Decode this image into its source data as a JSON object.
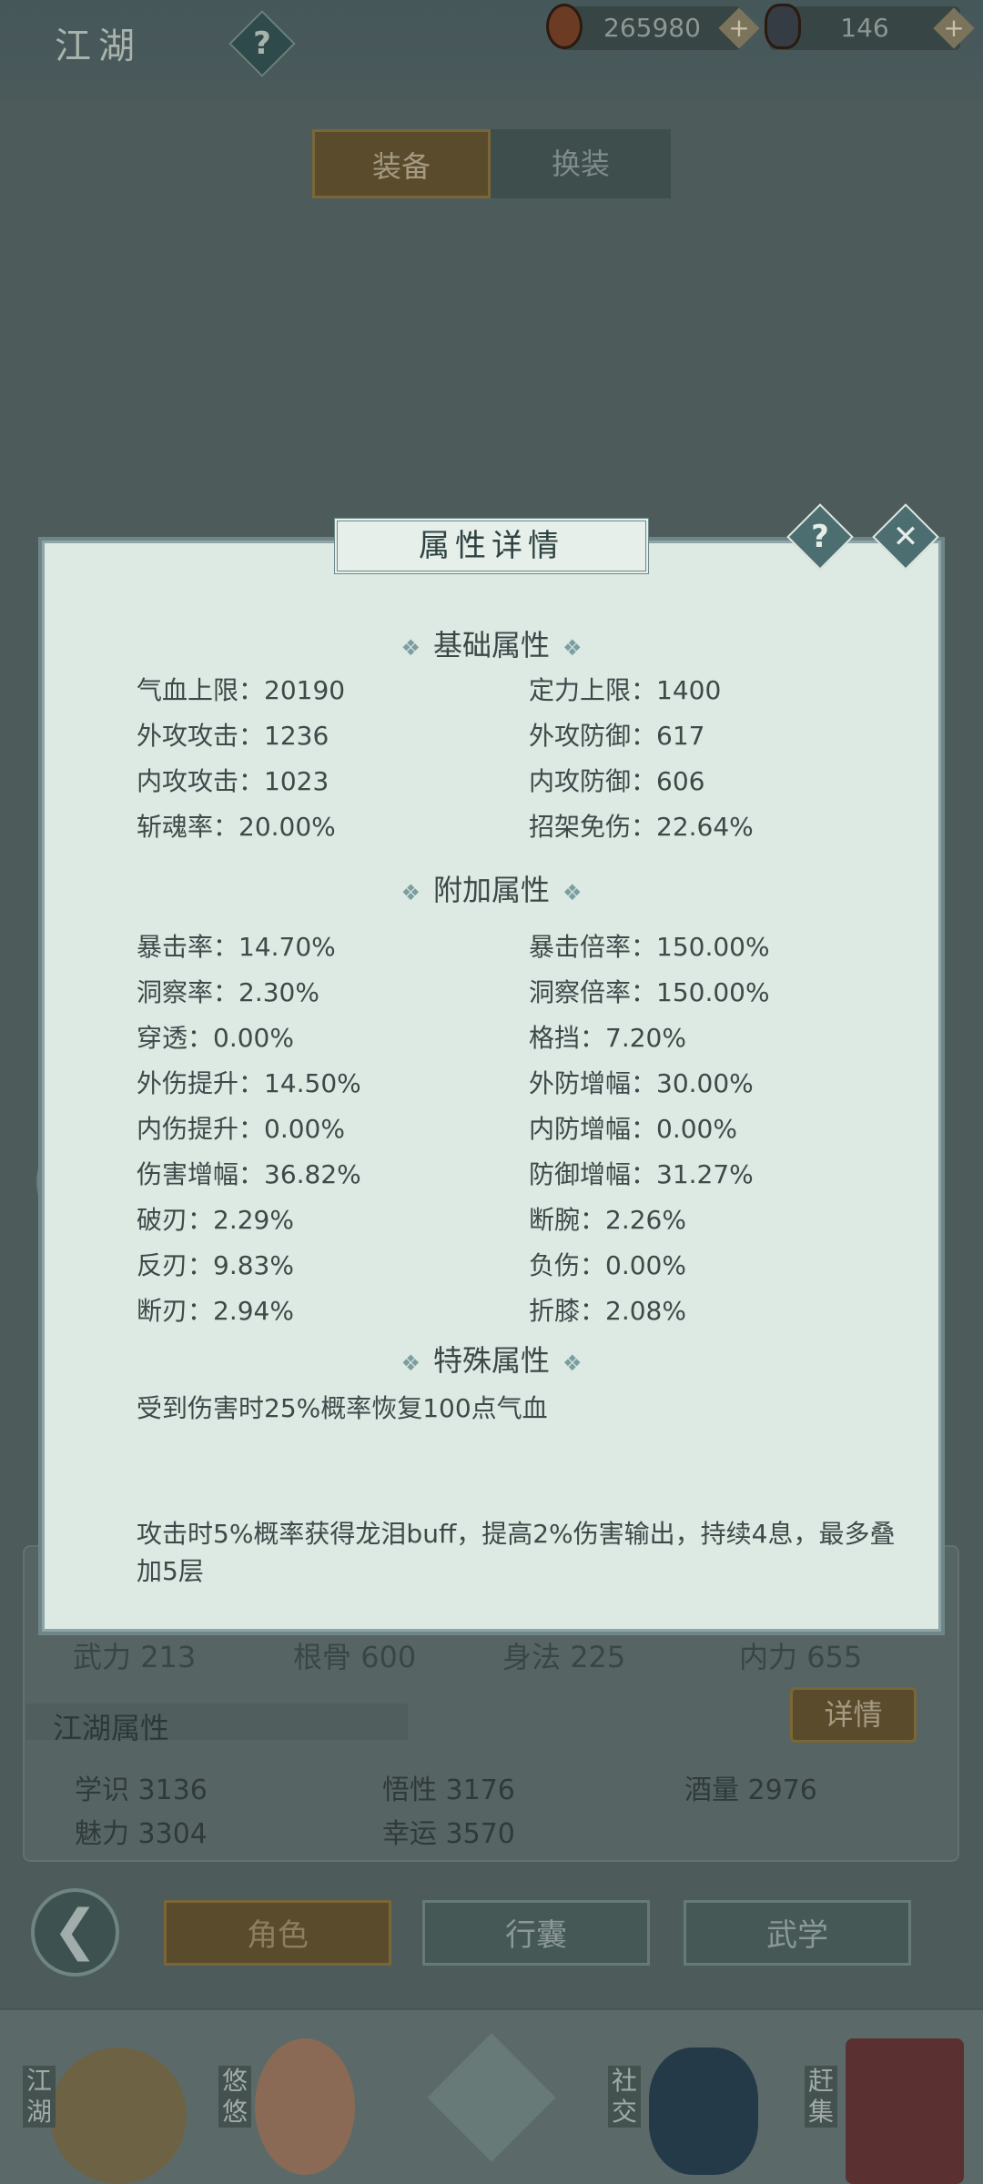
{
  "header": {
    "title": "江湖",
    "help_icon": "question-icon",
    "copper": "265980",
    "silver": "146"
  },
  "tabs": [
    {
      "label": "装备",
      "active": true
    },
    {
      "label": "换装",
      "active": false
    }
  ],
  "background_panel": {
    "stats_row": [
      {
        "label": "武力",
        "value": "213"
      },
      {
        "label": "根骨",
        "value": "600"
      },
      {
        "label": "身法",
        "value": "225"
      },
      {
        "label": "内力",
        "value": "655"
      }
    ],
    "section_title": "江湖属性",
    "detail_button": "详情",
    "jianghu_stats": [
      {
        "label": "学识",
        "value": "3136"
      },
      {
        "label": "悟性",
        "value": "3176"
      },
      {
        "label": "酒量",
        "value": "2976"
      },
      {
        "label": "魅力",
        "value": "3304"
      },
      {
        "label": "幸运",
        "value": "3570"
      }
    ]
  },
  "nav_buttons": [
    {
      "label": "角色",
      "active": true
    },
    {
      "label": "行囊",
      "active": false
    },
    {
      "label": "武学",
      "active": false
    }
  ],
  "dock": [
    {
      "label": "江湖"
    },
    {
      "label": "悠悠"
    },
    {
      "label": ""
    },
    {
      "label": "社交"
    },
    {
      "label": "赶集"
    }
  ],
  "dialog": {
    "title": "属性详情",
    "basic": {
      "title": "基础属性",
      "rows": [
        [
          "气血上限：20190",
          "定力上限：1400"
        ],
        [
          "外攻攻击：1236",
          "外攻防御：617"
        ],
        [
          "内攻攻击：1023",
          "内攻防御：606"
        ],
        [
          "斩魂率：20.00%",
          "招架免伤：22.64%"
        ]
      ]
    },
    "extra": {
      "title": "附加属性",
      "rows": [
        [
          "暴击率：14.70%",
          "暴击倍率：150.00%"
        ],
        [
          "洞察率：2.30%",
          "洞察倍率：150.00%"
        ],
        [
          "穿透：0.00%",
          "格挡：7.20%"
        ],
        [
          "外伤提升：14.50%",
          "外防增幅：30.00%"
        ],
        [
          "内伤提升：0.00%",
          "内防增幅：0.00%"
        ],
        [
          "伤害增幅：36.82%",
          "防御增幅：31.27%"
        ],
        [
          "破刃：2.29%",
          "断腕：2.26%"
        ],
        [
          "反刃：9.83%",
          "负伤：0.00%"
        ],
        [
          "断刃：2.94%",
          "折膝：2.08%"
        ]
      ]
    },
    "special": {
      "title": "特殊属性",
      "lines": [
        "受到伤害时25%概率恢复100点气血",
        "攻击时5%概率获得龙泪buff，提高2%伤害输出，持续4息，最多叠加5层"
      ]
    }
  },
  "colors": {
    "gold_active": "#5a4b2c",
    "dialog_bg": "#dde9e3",
    "overlay": "#4d5c5b"
  }
}
